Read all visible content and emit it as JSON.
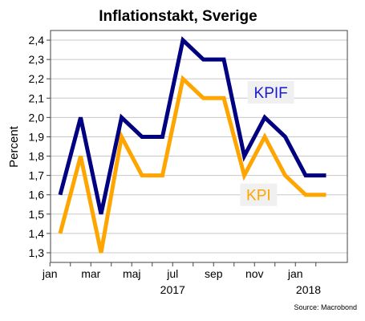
{
  "chart_data": {
    "type": "line",
    "title": "Inflationstakt, Sverige",
    "ylabel": "Percent",
    "source": "Source: Macrobond",
    "ylim": [
      1.25,
      2.45
    ],
    "yticks": [
      "1,3",
      "1,4",
      "1,5",
      "1,6",
      "1,7",
      "1,8",
      "1,9",
      "2,0",
      "2,1",
      "2,2",
      "2,3",
      "2,4"
    ],
    "x": [
      "2017-01",
      "2017-02",
      "2017-03",
      "2017-04",
      "2017-05",
      "2017-06",
      "2017-07",
      "2017-08",
      "2017-09",
      "2017-10",
      "2017-11",
      "2017-12",
      "2018-01",
      "2018-02"
    ],
    "xtick_labels": [
      "jan",
      "mar",
      "maj",
      "jul",
      "sep",
      "nov",
      "jan"
    ],
    "year_labels": [
      "2017",
      "2018"
    ],
    "grid": true,
    "series": [
      {
        "name": "KPIF",
        "color": "#000080",
        "values": [
          1.6,
          2.0,
          1.5,
          2.0,
          1.9,
          1.9,
          2.4,
          2.3,
          2.3,
          1.8,
          2.0,
          1.9,
          1.7,
          1.7
        ]
      },
      {
        "name": "KPI",
        "color": "#FFA500",
        "values": [
          1.4,
          1.8,
          1.3,
          1.9,
          1.7,
          1.7,
          2.2,
          2.1,
          2.1,
          1.7,
          1.9,
          1.7,
          1.6,
          1.6
        ]
      }
    ]
  }
}
